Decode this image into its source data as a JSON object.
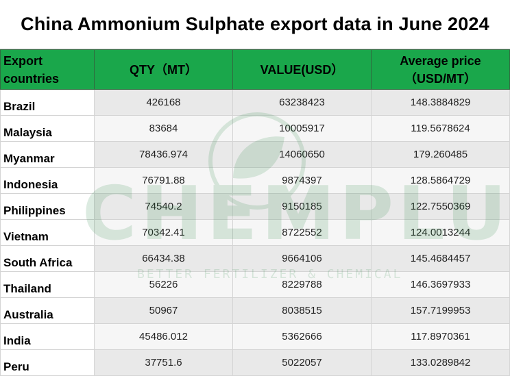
{
  "title": "China Ammonium Sulphate export data in June 2024",
  "header": {
    "country_label": "Export countries",
    "qty_label": "QTY（MT）",
    "value_label": "VALUE(USD）",
    "price_label_line1": "Average price",
    "price_label_line2": "（USD/MT）"
  },
  "rows": [
    {
      "country": "Brazil",
      "qty": "426168",
      "value": "63238423",
      "price": "148.3884829"
    },
    {
      "country": "Malaysia",
      "qty": "83684",
      "value": "10005917",
      "price": "119.5678624"
    },
    {
      "country": "Myanmar",
      "qty": "78436.974",
      "value": "14060650",
      "price": "179.260485"
    },
    {
      "country": "Indonesia",
      "qty": "76791.88",
      "value": "9874397",
      "price": "128.5864729"
    },
    {
      "country": "Philippines",
      "qty": "74540.2",
      "value": "9150185",
      "price": "122.7550369"
    },
    {
      "country": "Vietnam",
      "qty": "70342.41",
      "value": "8722552",
      "price": "124.0013244"
    },
    {
      "country": "South Africa",
      "qty": "66434.38",
      "value": "9664106",
      "price": "145.4684457"
    },
    {
      "country": "Thailand",
      "qty": "56226",
      "value": "8229788",
      "price": "146.3697933"
    },
    {
      "country": "Australia",
      "qty": "50967",
      "value": "8038515",
      "price": "157.7199953"
    },
    {
      "country": "India",
      "qty": "45486.012",
      "value": "5362666",
      "price": "117.8970361"
    },
    {
      "country": "Peru",
      "qty": "37751.6",
      "value": "5022057",
      "price": "133.0289842"
    }
  ],
  "watermark": {
    "brand": "CHEMPLUS",
    "tagline": "BETTER FERTILIZER & CHEMICAL",
    "icon": "leaf-circle-logo-icon"
  },
  "colors": {
    "header_green": "#1aa74b",
    "row_shade_dark": "#e9e9e9",
    "row_shade_light": "#f6f6f6",
    "watermark_green": "#2f8a4a"
  }
}
